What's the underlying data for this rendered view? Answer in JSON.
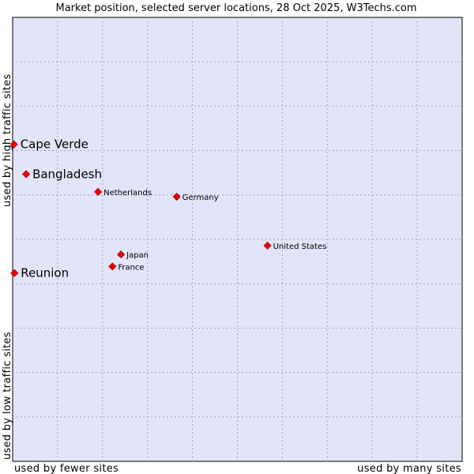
{
  "chart_data": {
    "type": "scatter",
    "title": "Market position, selected server locations, 28 Oct 2025, W3Techs.com",
    "xlabel_left": "used by fewer sites",
    "xlabel_right": "used by many sites",
    "ylabel_bottom": "used by low traffic sites",
    "ylabel_top": "used by high traffic sites",
    "xlim": [
      0,
      100
    ],
    "ylim": [
      0,
      100
    ],
    "grid": true,
    "colors": {
      "plot_background": "#e2e4f8",
      "grid": "#a0a0c0",
      "marker": "#ee0000",
      "marker_stroke": "#aa0000"
    },
    "points": [
      {
        "name": "Cape Verde",
        "x": 0.3,
        "y": 71.4,
        "emphasis": true
      },
      {
        "name": "Bangladesh",
        "x": 3.0,
        "y": 64.7,
        "emphasis": true
      },
      {
        "name": "Netherlands",
        "x": 19.0,
        "y": 60.7,
        "emphasis": false
      },
      {
        "name": "Germany",
        "x": 36.5,
        "y": 59.6,
        "emphasis": false
      },
      {
        "name": "United States",
        "x": 56.7,
        "y": 48.6,
        "emphasis": false
      },
      {
        "name": "Japan",
        "x": 24.1,
        "y": 46.6,
        "emphasis": false
      },
      {
        "name": "France",
        "x": 22.2,
        "y": 43.9,
        "emphasis": false
      },
      {
        "name": "Reunion",
        "x": 0.4,
        "y": 42.4,
        "emphasis": true
      }
    ]
  }
}
